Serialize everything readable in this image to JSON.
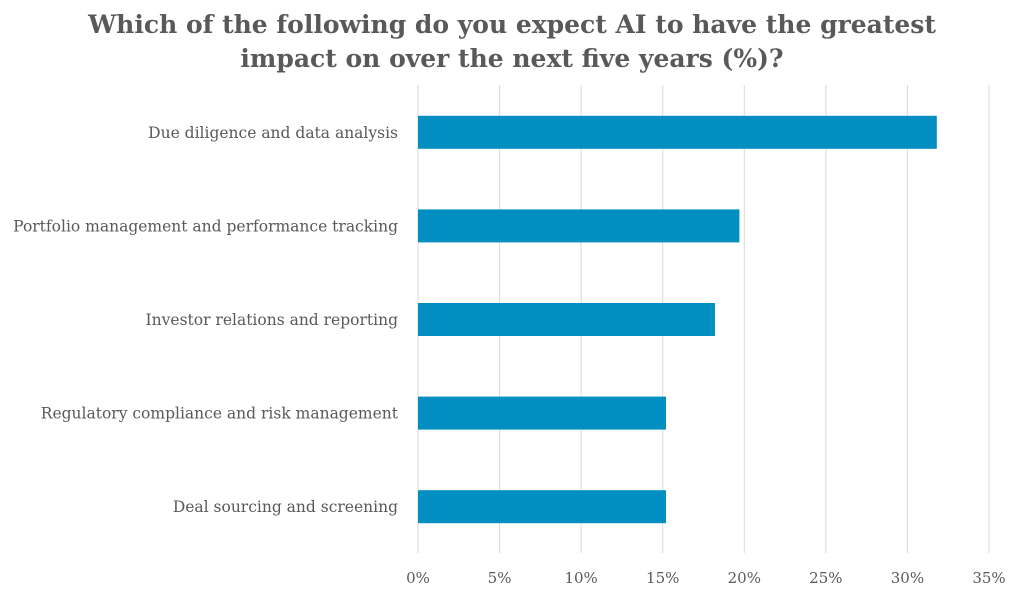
{
  "chart_data": {
    "type": "bar",
    "orientation": "horizontal",
    "title_lines": [
      "Which of the following do you expect AI to have the greatest",
      "impact on over the next five years (%)?"
    ],
    "categories": [
      "Due diligence and data analysis",
      "Portfolio management and performance tracking",
      "Investor relations and reporting",
      "Regulatory compliance and risk management",
      "Deal sourcing and screening"
    ],
    "values": [
      31.8,
      19.7,
      18.2,
      15.2,
      15.2
    ],
    "xlim": [
      0,
      35
    ],
    "x_ticks": [
      0,
      5,
      10,
      15,
      20,
      25,
      30,
      35
    ],
    "x_tick_labels": [
      "0%",
      "5%",
      "10%",
      "15%",
      "20%",
      "25%",
      "30%",
      "35%"
    ],
    "grid": true,
    "legend": "none",
    "bar_color": "#008fc0",
    "grid_color": "#d9d9d9",
    "text_color": "#595959"
  }
}
